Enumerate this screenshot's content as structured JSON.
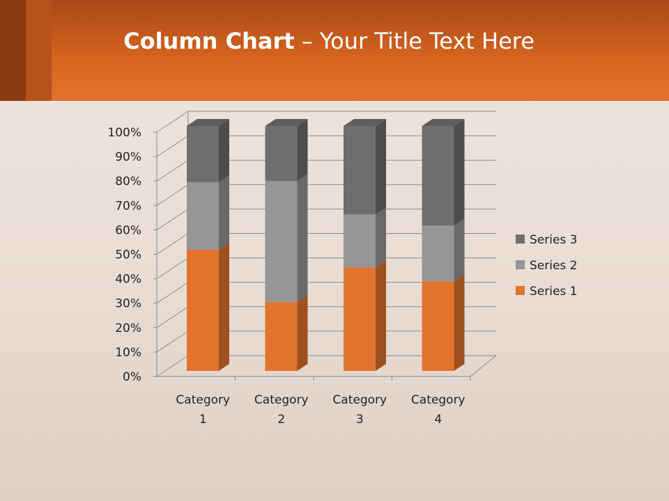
{
  "title": {
    "bold": "Column Chart",
    "rest": " – Your Title Text Here"
  },
  "chart_data": {
    "type": "bar",
    "stacking": "percent",
    "three_d": true,
    "categories": [
      "Category 1",
      "Category 2",
      "Category 3",
      "Category 4"
    ],
    "series": [
      {
        "name": "Series 1",
        "values": [
          4.3,
          2.5,
          3.5,
          4.5
        ],
        "color": "#e2732c"
      },
      {
        "name": "Series 2",
        "values": [
          2.4,
          4.4,
          1.8,
          2.8
        ],
        "color": "#969696"
      },
      {
        "name": "Series 3",
        "values": [
          2,
          2,
          3,
          5
        ],
        "color": "#6e6e6e"
      }
    ],
    "yticks": [
      "0%",
      "10%",
      "20%",
      "30%",
      "40%",
      "50%",
      "60%",
      "70%",
      "80%",
      "90%",
      "100%"
    ],
    "ylim": [
      0,
      100
    ],
    "grid": true,
    "legend": "right"
  },
  "colors": {
    "header": "#d8641f"
  }
}
